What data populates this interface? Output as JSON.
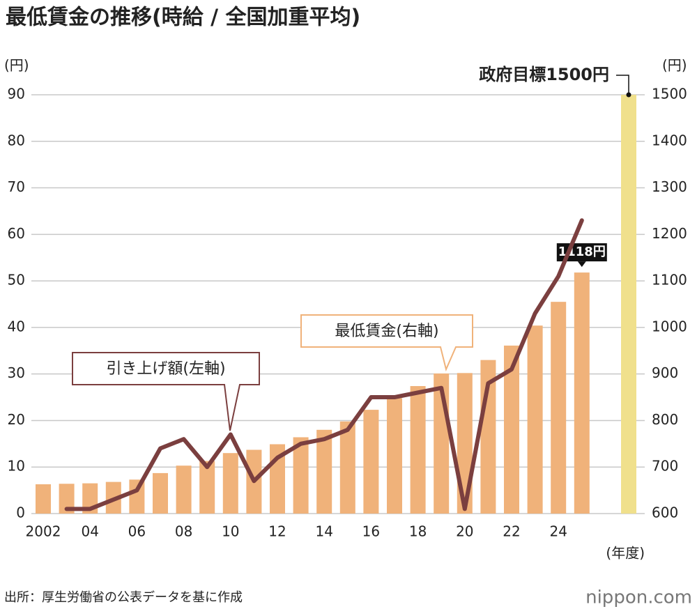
{
  "chart_data": {
    "type": "bar-line",
    "title": "最低賃金の推移(時給 / 全国加重平均)",
    "ylabel": "(円)",
    "y2label": "(円)",
    "xlabel": "(年度)",
    "source": "出所：厚生労働省の公表データを基に作成",
    "brand": "nippon.com",
    "categories": [
      "2002",
      null,
      "04",
      null,
      "06",
      null,
      "08",
      null,
      "10",
      null,
      "12",
      null,
      "14",
      null,
      "16",
      null,
      "18",
      null,
      "20",
      null,
      "22",
      null,
      "24",
      null,
      null,
      null
    ],
    "ylim": [
      0,
      90
    ],
    "yticks": [
      0,
      10,
      20,
      30,
      40,
      50,
      60,
      70,
      80,
      90
    ],
    "y2lim": [
      600,
      1500
    ],
    "y2ticks": [
      600,
      700,
      800,
      900,
      1000,
      1100,
      1200,
      1300,
      1400,
      1500
    ],
    "grid": true,
    "series": [
      {
        "name": "最低賃金(右軸)",
        "kind": "bar",
        "axis": "y2",
        "color": "#f0b27a",
        "values": [
          663,
          664,
          665,
          668,
          673,
          687,
          703,
          713,
          730,
          737,
          749,
          764,
          780,
          798,
          823,
          848,
          874,
          901,
          902,
          930,
          961,
          1004,
          1055,
          1118,
          null,
          null
        ],
        "value_labels": [
          null,
          null,
          null,
          null,
          null,
          null,
          null,
          null,
          null,
          null,
          null,
          null,
          null,
          null,
          null,
          null,
          null,
          null,
          null,
          null,
          null,
          null,
          null,
          "1118円",
          null,
          null
        ]
      },
      {
        "name": "政府目標1500円",
        "kind": "bar",
        "axis": "y2",
        "color": "#f0e08c",
        "values": [
          null,
          null,
          null,
          null,
          null,
          null,
          null,
          null,
          null,
          null,
          null,
          null,
          null,
          null,
          null,
          null,
          null,
          null,
          null,
          null,
          null,
          null,
          null,
          null,
          null,
          1500
        ]
      },
      {
        "name": "引き上げ額(左軸)",
        "kind": "line",
        "color": "#7b3f3f",
        "values": [
          null,
          1,
          1,
          3,
          5,
          14,
          16,
          10,
          17,
          7,
          12,
          15,
          16,
          18,
          25,
          25,
          26,
          27,
          1,
          28,
          31,
          43,
          51,
          63,
          null,
          null
        ]
      }
    ]
  }
}
